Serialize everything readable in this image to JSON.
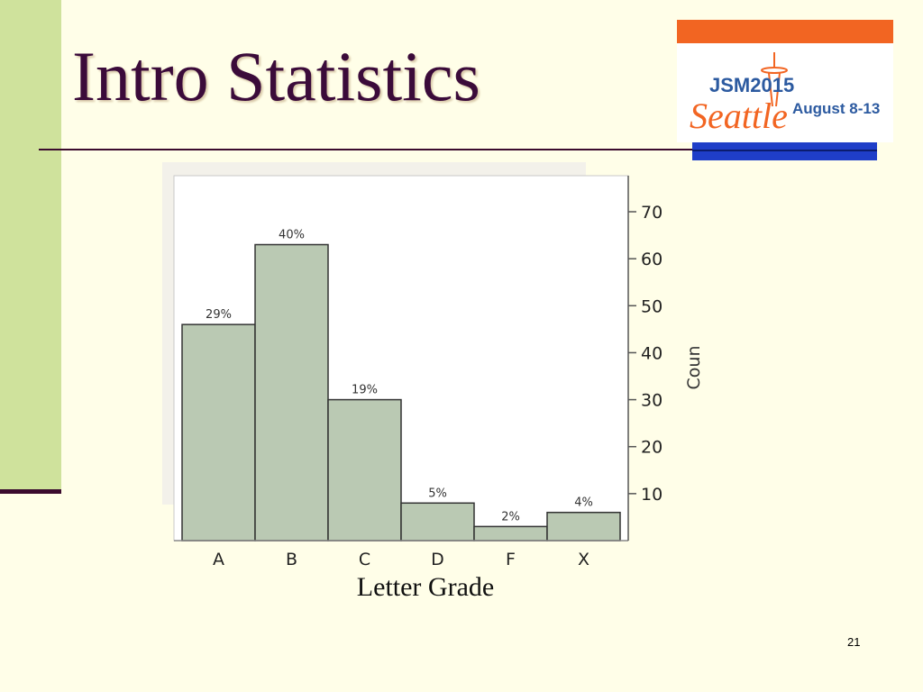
{
  "slide": {
    "title": "Intro Statistics",
    "page_number": "21"
  },
  "logo": {
    "year_text": "JSM2015",
    "city_text": "Seattle",
    "dates_text": "August 8-13",
    "colors": {
      "orange": "#f26522",
      "blue": "#1f3ec8",
      "text_blue": "#2c5aa0"
    }
  },
  "chart_data": {
    "type": "bar",
    "categories": [
      "A",
      "B",
      "C",
      "D",
      "F",
      "X"
    ],
    "values": [
      46,
      63,
      30,
      8,
      3,
      6
    ],
    "data_labels": [
      "29%",
      "40%",
      "19%",
      "5%",
      "2%",
      "4%"
    ],
    "xlabel": "Letter Grade",
    "ylabel": "Coun",
    "ylim": [
      0,
      70
    ],
    "yticks": [
      10,
      20,
      30,
      40,
      50,
      60,
      70
    ],
    "y_axis_side": "right",
    "bar_color": "#bac9b3",
    "grid": false
  }
}
